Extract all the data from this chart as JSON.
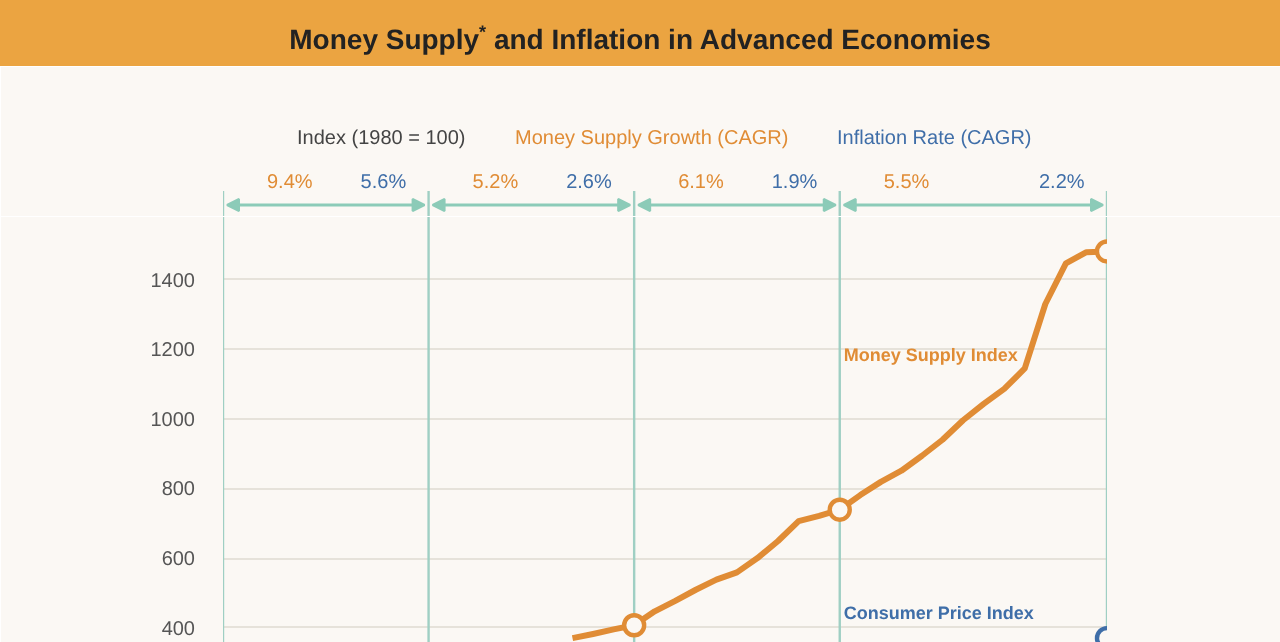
{
  "chart_data": {
    "type": "line",
    "title": "Money Supply$^{*}$ and Inflation in Advanced Economies",
    "ylabel": "Index (1980 = 100)",
    "categories": [
      null,
      null,
      null,
      null,
      null,
      null,
      null,
      null,
      null,
      null,
      null,
      null,
      null,
      null,
      null,
      null,
      null,
      null,
      null,
      null,
      null,
      null,
      null,
      null,
      null,
      null,
      null,
      null,
      null,
      null,
      null,
      null,
      null,
      null,
      null,
      null,
      null,
      null,
      null,
      null,
      null,
      null,
      null,
      null
    ],
    "series": [
      {
        "name": "Money Supply Index",
        "color": "#e08c35",
        "values": [
          null,
          null,
          null,
          null,
          null,
          null,
          null,
          null,
          null,
          null,
          null,
          null,
          null,
          null,
          null,
          null,
          null,
          370,
          382,
          395,
          407,
          447,
          477,
          509,
          538,
          559,
          600,
          649,
          706,
          721,
          739,
          781,
          819,
          851,
          894,
          940,
          996,
          1043,
          1086,
          1145,
          1330,
          1447,
          1479,
          1481
        ]
      },
      {
        "name": "Consumer Price Index",
        "color": "#3f6ea8",
        "marker": "circle",
        "values": [
          null,
          null,
          null,
          null,
          null,
          null,
          null,
          null,
          null,
          null,
          null,
          null,
          null,
          null,
          null,
          null,
          null,
          null,
          null,
          null,
          null,
          null,
          null,
          null,
          null,
          null,
          null,
          null,
          null,
          null,
          null,
          null,
          null,
          null,
          null,
          null,
          null,
          null,
          null,
          null,
          null,
          null,
          null,
          370
        ]
      }
    ],
    "ylim": [
      356,
      1580
    ],
    "yticks": [
      400,
      600,
      800,
      1000,
      1200,
      1400
    ],
    "tick_labels": "y",
    "grid": true,
    "line_style": "solid",
    "annotations": [
      "Money Supply Growth (CAGR)",
      "Inflation Rate (CAGR)",
      "9.4%",
      "5.6%",
      "5.2%",
      "2.6%",
      "6.1%",
      "1.9%",
      "5.5%",
      "2.2%"
    ]
  }
}
